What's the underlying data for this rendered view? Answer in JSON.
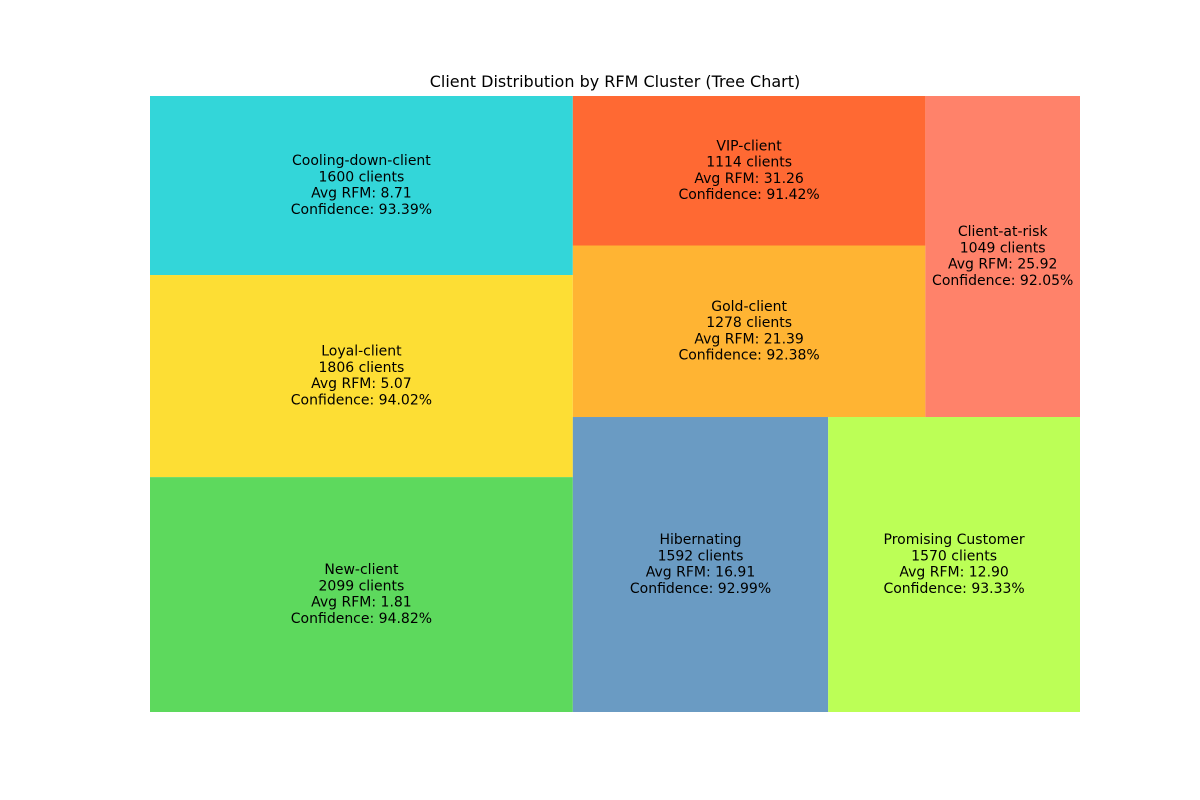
{
  "chart_data": {
    "type": "treemap",
    "title": "Client Distribution by RFM Cluster (Tree Chart)",
    "tiles": [
      {
        "name": "Cooling-down-client",
        "clients": 1600,
        "clients_text": "1600 clients",
        "avg_rfm_text": "Avg RFM: 8.71",
        "confidence_text": "Confidence: 93.39%",
        "avg_rfm": 8.71,
        "confidence": 93.39,
        "color": "#33d6d9"
      },
      {
        "name": "Loyal-client",
        "clients": 1806,
        "clients_text": "1806 clients",
        "avg_rfm_text": "Avg RFM: 5.07",
        "confidence_text": "Confidence: 94.02%",
        "avg_rfm": 5.07,
        "confidence": 94.02,
        "color": "#fdde34"
      },
      {
        "name": "New-client",
        "clients": 2099,
        "clients_text": "2099 clients",
        "avg_rfm_text": "Avg RFM: 1.81",
        "confidence_text": "Confidence: 94.82%",
        "avg_rfm": 1.81,
        "confidence": 94.82,
        "color": "#5dd95d"
      },
      {
        "name": "VIP-client",
        "clients": 1114,
        "clients_text": "1114 clients",
        "avg_rfm_text": "Avg RFM: 31.26",
        "confidence_text": "Confidence: 91.42%",
        "avg_rfm": 31.26,
        "confidence": 91.42,
        "color": "#ff6933"
      },
      {
        "name": "Gold-client",
        "clients": 1278,
        "clients_text": "1278 clients",
        "avg_rfm_text": "Avg RFM: 21.39",
        "confidence_text": "Confidence: 92.38%",
        "avg_rfm": 21.39,
        "confidence": 92.38,
        "color": "#ffb433"
      },
      {
        "name": "Client-at-risk",
        "clients": 1049,
        "clients_text": "1049 clients",
        "avg_rfm_text": "Avg RFM: 25.92",
        "confidence_text": "Confidence: 92.05%",
        "avg_rfm": 25.92,
        "confidence": 92.05,
        "color": "#ff826a"
      },
      {
        "name": "Hibernating",
        "clients": 1592,
        "clients_text": "1592 clients",
        "avg_rfm_text": "Avg RFM: 16.91",
        "confidence_text": "Confidence: 92.99%",
        "avg_rfm": 16.91,
        "confidence": 92.99,
        "color": "#6a9bc3"
      },
      {
        "name": "Promising Customer",
        "clients": 1570,
        "clients_text": "1570 clients",
        "avg_rfm_text": "Avg RFM: 12.90",
        "confidence_text": "Confidence: 93.33%",
        "avg_rfm": 12.9,
        "confidence": 93.33,
        "color": "#bcff56"
      }
    ]
  }
}
